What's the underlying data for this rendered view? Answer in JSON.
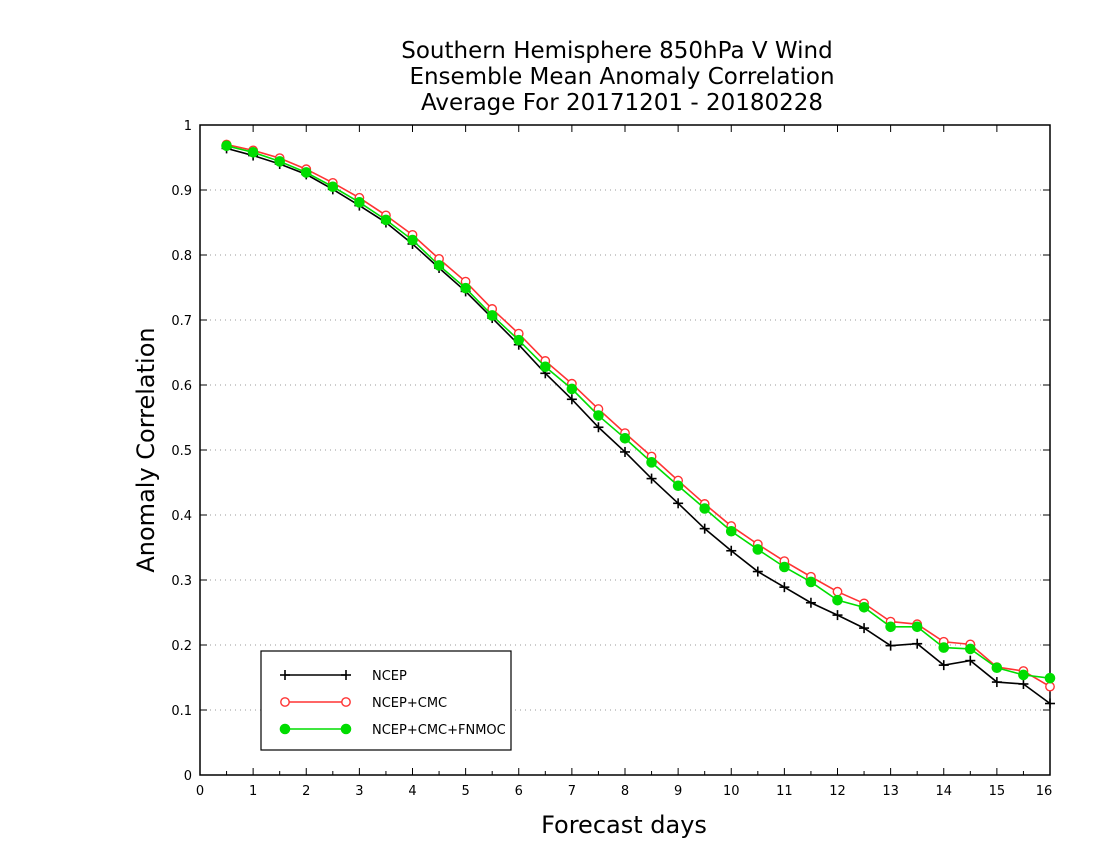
{
  "chart_data": {
    "type": "line",
    "title": [
      "Southern Hemisphere 850hPa V Wind",
      "Ensemble Mean Anomaly Correlation",
      "Average For 20171201 - 20180228"
    ],
    "xlabel": "Forecast days",
    "ylabel": "Anomaly Correlation",
    "xlim": [
      0,
      16
    ],
    "ylim": [
      0,
      1
    ],
    "x_ticks": [
      0,
      1,
      2,
      3,
      4,
      5,
      6,
      7,
      8,
      9,
      10,
      11,
      12,
      13,
      14,
      15,
      16
    ],
    "y_ticks": [
      0,
      0.1,
      0.2,
      0.3,
      0.4,
      0.5,
      0.6,
      0.7,
      0.8,
      0.9,
      1
    ],
    "grid": "horizontal dotted",
    "legend_position": "bottom-left",
    "x": [
      0.5,
      1,
      1.5,
      2,
      2.5,
      3,
      3.5,
      4,
      4.5,
      5,
      5.5,
      6,
      6.5,
      7,
      7.5,
      8,
      8.5,
      9,
      9.5,
      10,
      10.5,
      11,
      11.5,
      12,
      12.5,
      13,
      13.5,
      14,
      14.5,
      15,
      15.5,
      16
    ],
    "series": [
      {
        "name": "NCEP",
        "color": "#000000",
        "marker": "plus",
        "values": [
          0.964,
          0.953,
          0.94,
          0.924,
          0.901,
          0.876,
          0.85,
          0.817,
          0.78,
          0.744,
          0.703,
          0.662,
          0.618,
          0.578,
          0.535,
          0.497,
          0.456,
          0.418,
          0.379,
          0.345,
          0.313,
          0.289,
          0.265,
          0.246,
          0.226,
          0.199,
          0.202,
          0.169,
          0.176,
          0.143,
          0.14,
          0.11
        ]
      },
      {
        "name": "NCEP+CMC",
        "color": "#ff3333",
        "marker": "open-circle",
        "values": [
          0.97,
          0.961,
          0.949,
          0.932,
          0.911,
          0.888,
          0.861,
          0.831,
          0.794,
          0.759,
          0.717,
          0.679,
          0.637,
          0.602,
          0.563,
          0.526,
          0.49,
          0.453,
          0.417,
          0.383,
          0.355,
          0.329,
          0.305,
          0.282,
          0.264,
          0.236,
          0.232,
          0.205,
          0.201,
          0.166,
          0.16,
          0.136
        ]
      },
      {
        "name": "NCEP+CMC+FNMOC",
        "color": "#00dd00",
        "marker": "filled-circle",
        "values": [
          0.968,
          0.958,
          0.944,
          0.927,
          0.905,
          0.881,
          0.854,
          0.823,
          0.784,
          0.749,
          0.707,
          0.669,
          0.628,
          0.594,
          0.553,
          0.518,
          0.481,
          0.445,
          0.41,
          0.375,
          0.347,
          0.32,
          0.297,
          0.269,
          0.258,
          0.228,
          0.228,
          0.196,
          0.194,
          0.165,
          0.154,
          0.149
        ]
      }
    ]
  }
}
